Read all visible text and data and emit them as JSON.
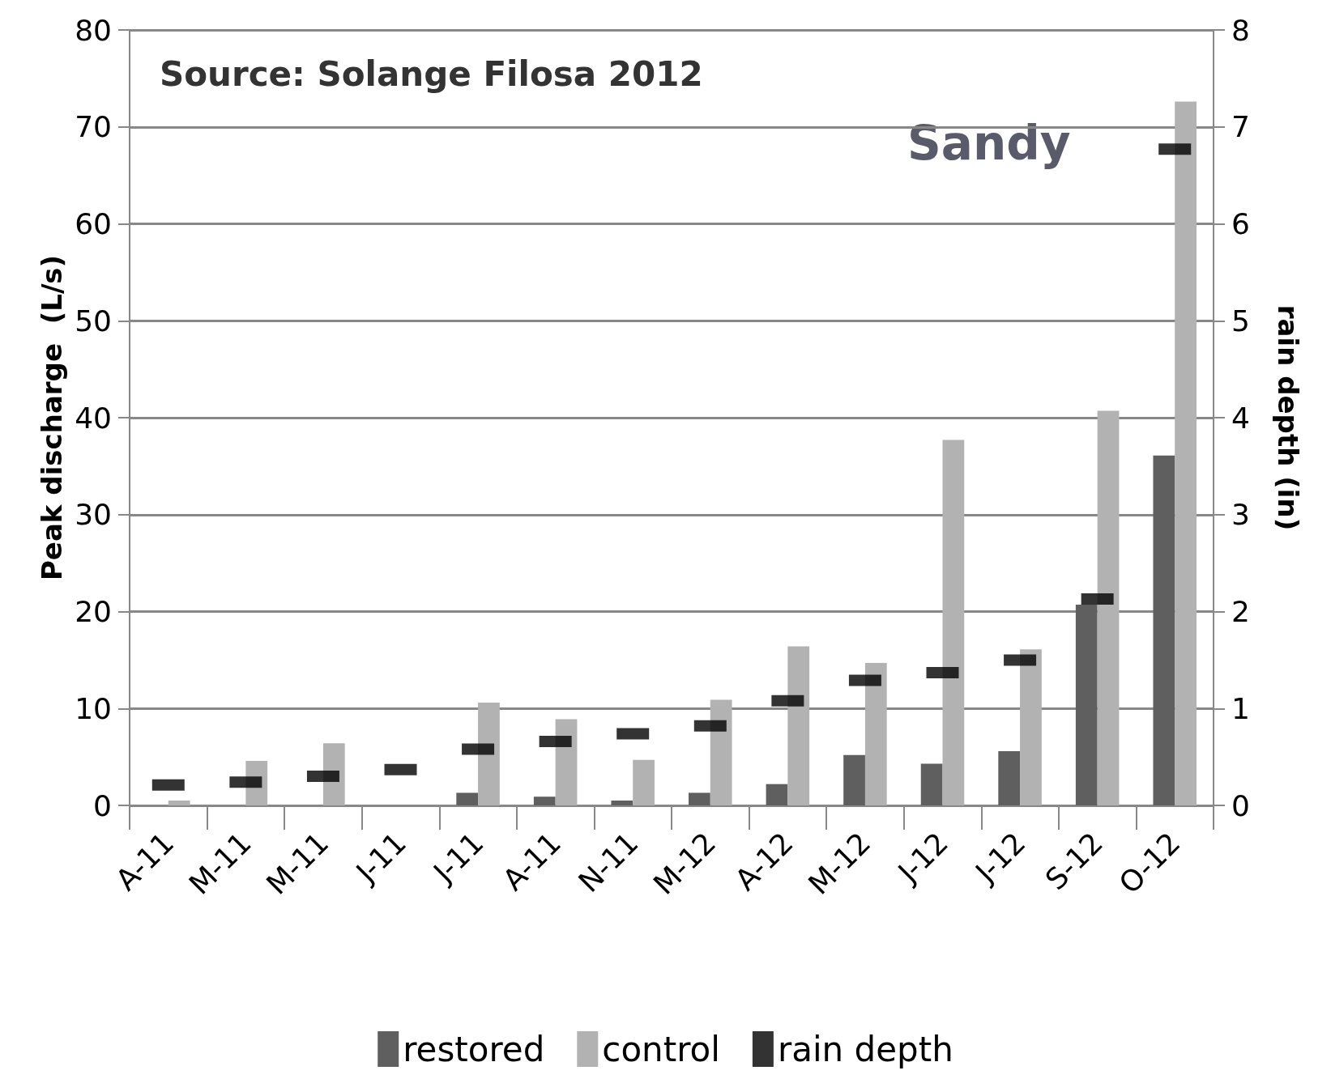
{
  "chart_data": {
    "type": "bar",
    "categories": [
      "A-11",
      "M-11",
      "M-11",
      "J-11",
      "J-11",
      "A-11",
      "N-11",
      "M-12",
      "A-12",
      "M-12",
      "J-12",
      "J-12",
      "S-12",
      "O-12"
    ],
    "series": [
      {
        "name": "restored",
        "color": "#5f5f5f",
        "values": [
          0,
          0,
          0,
          0,
          1.3,
          0.9,
          0.5,
          1.3,
          2.2,
          5.2,
          4.3,
          5.6,
          20.7,
          36.1
        ]
      },
      {
        "name": "control",
        "color": "#b2b2b2",
        "values": [
          0.5,
          4.6,
          6.4,
          null,
          10.6,
          8.9,
          4.7,
          10.9,
          16.4,
          14.7,
          37.7,
          16.1,
          40.7,
          72.6
        ]
      },
      {
        "name": "rain depth",
        "type": "scatter",
        "axis": "y2",
        "marker": "square",
        "color": "#000000",
        "values": [
          0.21,
          0.24,
          0.3,
          0.37,
          0.58,
          0.66,
          0.74,
          0.82,
          1.08,
          1.29,
          1.37,
          1.5,
          2.13,
          6.77
        ]
      }
    ],
    "ylabel": "Peak discharge  (L/s)",
    "y2label": "rain depth (in)",
    "ylim": [
      0,
      80
    ],
    "yticks": [
      0,
      10,
      20,
      30,
      40,
      50,
      60,
      70,
      80
    ],
    "y2lim": [
      0,
      8
    ],
    "y2ticks": [
      0,
      1,
      2,
      3,
      4,
      5,
      6,
      7,
      8
    ],
    "annotations": [
      "Source: Solange Filosa 2012",
      "Sandy"
    ],
    "grid": "y",
    "legend": "bottom"
  }
}
